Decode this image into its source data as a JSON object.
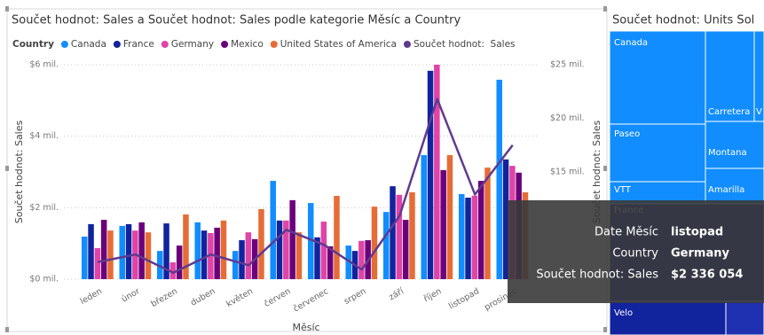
{
  "chart_data": [
    {
      "type": "combo",
      "title": "Součet hodnot: Sales a Součet hodnot: Sales podle kategorie Měsíc a Country",
      "legend_title": "Country",
      "categories": [
        "leden",
        "únor",
        "březen",
        "duben",
        "květen",
        "červen",
        "červenec",
        "srpen",
        "září",
        "říjen",
        "listopad",
        "prosinec"
      ],
      "series": [
        {
          "name": "Canada",
          "type": "bar",
          "color": "#118DFF",
          "values": [
            1.19,
            1.49,
            0.79,
            1.59,
            0.79,
            2.75,
            2.13,
            0.94,
            1.88,
            3.47,
            2.38,
            5.58
          ]
        },
        {
          "name": "France",
          "type": "bar",
          "color": "#12239E",
          "values": [
            1.54,
            1.54,
            1.56,
            1.36,
            1.09,
            1.64,
            1.17,
            0.79,
            2.6,
            5.83,
            2.28,
            3.35
          ]
        },
        {
          "name": "Germany",
          "type": "bar",
          "color": "#E044A7",
          "values": [
            0.87,
            1.36,
            0.47,
            1.29,
            1.31,
            1.64,
            1.61,
            1.07,
            2.36,
            6.0,
            2.336054,
            3.17
          ]
        },
        {
          "name": "Mexico",
          "type": "bar",
          "color": "#6B007B",
          "values": [
            1.66,
            1.59,
            0.94,
            1.44,
            1.12,
            2.21,
            0.92,
            1.09,
            1.66,
            3.05,
            2.75,
            2.98
          ]
        },
        {
          "name": "United States of America",
          "type": "bar",
          "color": "#E66C37",
          "values": [
            1.36,
            1.31,
            1.81,
            1.64,
            1.96,
            1.31,
            2.33,
            2.03,
            2.43,
            3.47,
            3.12,
            2.43
          ]
        },
        {
          "name": "Součet hodnot:  Sales",
          "type": "line",
          "axis": "y2",
          "color": "#5F3A8F",
          "values": [
            6.6,
            7.3,
            5.6,
            7.3,
            6.3,
            9.6,
            8.2,
            5.9,
            10.9,
            21.8,
            12.9,
            17.5
          ]
        }
      ],
      "ylim": [
        0,
        6
      ],
      "yticks": [
        {
          "value": 0,
          "label": "$0 mil."
        },
        {
          "value": 2,
          "label": "$2 mil."
        },
        {
          "value": 4,
          "label": "$4 mil."
        },
        {
          "value": 6,
          "label": "$6 mil."
        }
      ],
      "y2lim": [
        5,
        25
      ],
      "y2ticks": [
        {
          "value": 15,
          "label": "$15 mil."
        },
        {
          "value": 20,
          "label": "$20 mil."
        },
        {
          "value": 25,
          "label": "$25 mil."
        }
      ],
      "y_label": "Součet hodnot: Sales",
      "y2_label": "Součet hodnot: Sales",
      "x_label": "Měsíc",
      "grid": true
    },
    {
      "type": "treemap",
      "title": "Součet hodnot: Units Sol",
      "labels": [
        "Canada",
        "Carretera",
        "V",
        "Paseo",
        "Montana",
        "VTT",
        "Amarilla",
        "France",
        "Velo"
      ]
    }
  ],
  "tooltip": {
    "rows": [
      [
        "Date Měsíc",
        "listopad"
      ],
      [
        "Country",
        "Germany"
      ],
      [
        "Součet hodnot: Sales",
        "$2 336 054"
      ]
    ]
  }
}
